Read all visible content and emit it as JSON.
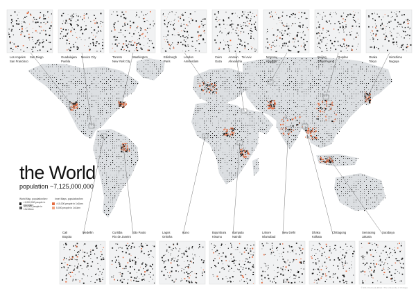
{
  "title": {
    "main": "the World",
    "subtitle": "population ~7,125,000,000"
  },
  "legend": {
    "world_header": "World Map, population/km²",
    "inset_header": "Inset Maps, population/km²",
    "world_items": [
      {
        "label": ">1,000,000 people in 10x10km²",
        "color": "#111111"
      },
      {
        "label": "500,000 people in 10x10km²",
        "color": "#555555"
      }
    ],
    "inset_items": [
      {
        "label": ">10,000 people in 1x1km²",
        "color": "#e46b3f"
      },
      {
        "label": "5,000 people in 1x1km²",
        "color": "#f2a380"
      }
    ]
  },
  "colors": {
    "land": "#dcdfe2",
    "ocean": "#ffffff",
    "dots": "#1a1a1a",
    "accent": "#e46b3f",
    "inset_bg": "#f1f2f3",
    "leader": "#555555"
  },
  "top_insets": [
    {
      "labels": [
        "Los Angeles",
        "San Francisco",
        "San Diego"
      ]
    },
    {
      "labels": [
        "Guadalajara",
        "Puebla",
        "Mexico City"
      ]
    },
    {
      "labels": [
        "Toronto",
        "New York City",
        "Washington"
      ]
    },
    {
      "labels": [
        "Edinburgh",
        "Paris",
        "London",
        "Amsterdam"
      ]
    },
    {
      "labels": [
        "Cairo",
        "Gaza",
        "Amman",
        "Alexandria",
        "Tel Aviv"
      ]
    },
    {
      "labels": [
        "Moscow",
        "Kharkov"
      ]
    },
    {
      "labels": [
        "Beijing",
        "Shijiazhuang",
        "Quqdao"
      ]
    },
    {
      "labels": [
        "Osaka",
        "Tokyo",
        "Hiroshima",
        "Nagoya"
      ]
    }
  ],
  "bottom_insets": [
    {
      "labels": [
        "Cali",
        "Bogota",
        "Medellin"
      ]
    },
    {
      "labels": [
        "Curitiba",
        "Rio de Janeiro",
        "São Paulo"
      ]
    },
    {
      "labels": [
        "Lagos",
        "Onitsha",
        "Kano"
      ]
    },
    {
      "labels": [
        "Bujumbura",
        "Kisumu",
        "Kampala",
        "Nairobi"
      ]
    },
    {
      "labels": [
        "Lahore",
        "Islamabad",
        "New Delhi"
      ]
    },
    {
      "labels": [
        "Dhaka",
        "Kolkata",
        "Chittagong"
      ]
    },
    {
      "labels": [
        "Semarang",
        "Jakarta",
        "Surabaya"
      ]
    }
  ],
  "credit": "© 2014 Kennedy Elliott / The University of Chicago"
}
